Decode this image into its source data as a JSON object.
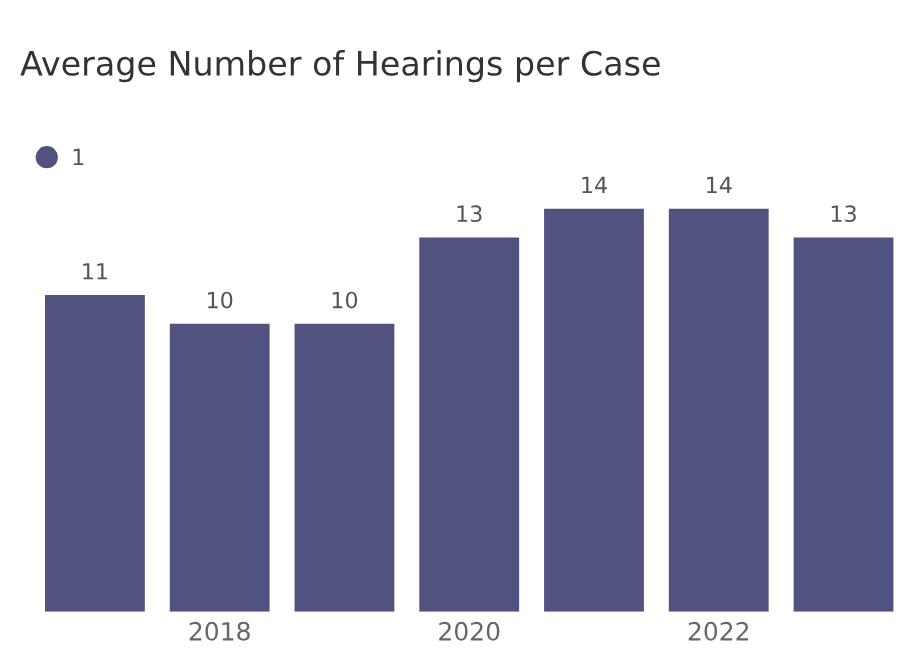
{
  "chart_data": {
    "type": "bar",
    "title": "Average Number of Hearings per Case",
    "categories": [
      null,
      "2018",
      null,
      "2020",
      null,
      "2022",
      null
    ],
    "series": [
      {
        "name": "1",
        "color": "#51527f",
        "values": [
          11,
          10,
          10,
          13,
          14,
          14,
          13
        ]
      }
    ],
    "data_labels": true,
    "legend": "top left",
    "grid": false
  }
}
